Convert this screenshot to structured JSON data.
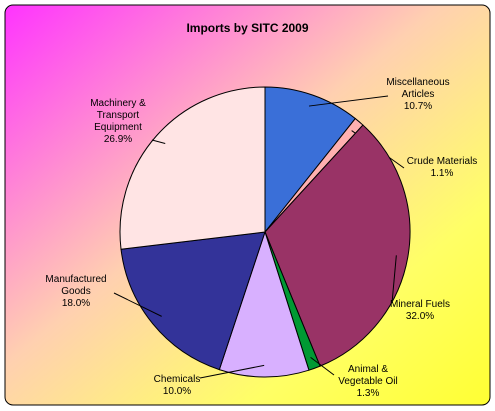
{
  "chart_data": {
    "type": "pie",
    "title": "Imports by SITC 2009",
    "categories": [
      "Miscellaneous Articles",
      "Crude Materials",
      "Mineral Fuels",
      "Animal & Vegetable Oil",
      "Chemicals",
      "Manufactured Goods",
      "Machinery & Transport Equipment"
    ],
    "values": [
      10.7,
      1.1,
      32.0,
      1.3,
      10.0,
      18.0,
      26.9
    ],
    "value_labels": [
      "10.7%",
      "1.1%",
      "32.0%",
      "1.3%",
      "10.0%",
      "18.0%",
      "26.9%"
    ],
    "colors": [
      "#3a6fd8",
      "#ffb0b0",
      "#993366",
      "#009933",
      "#d8b0ff",
      "#333399",
      "#ffe4e4"
    ]
  }
}
